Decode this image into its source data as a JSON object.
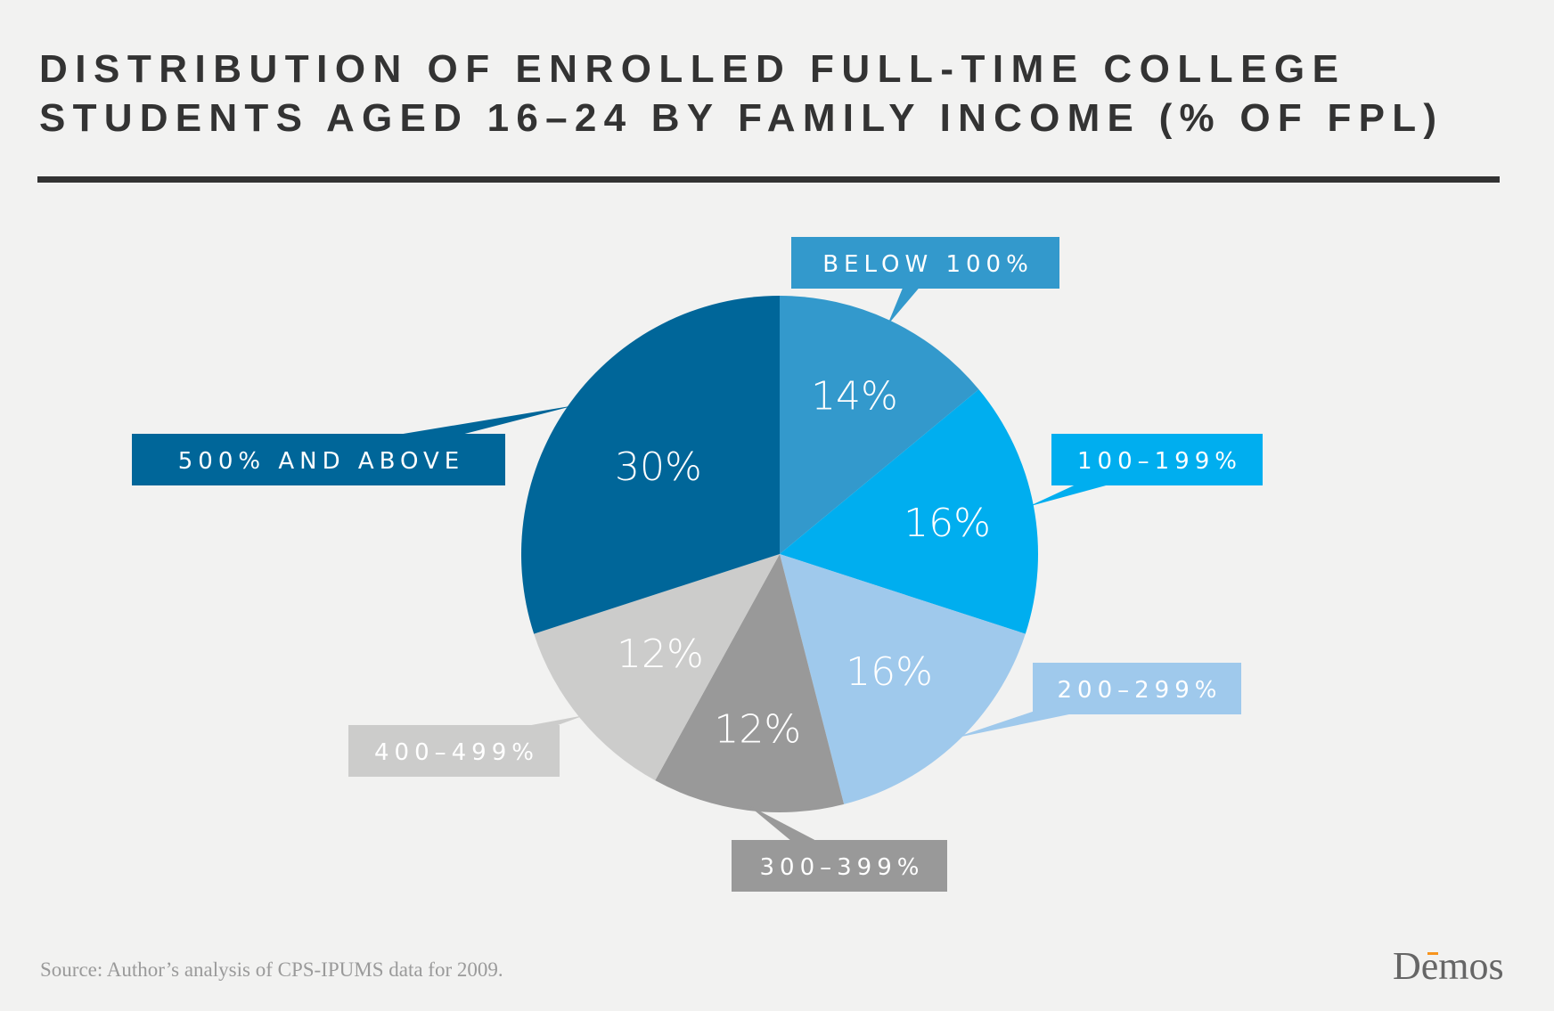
{
  "chart_data": {
    "type": "pie",
    "title_lines": [
      "DISTRIBUTION OF ENROLLED FULL-TIME COLLEGE",
      "STUDENTS AGED 16–24 BY FAMILY INCOME (% OF FPL)"
    ],
    "start": "top",
    "direction": "clockwise",
    "slices": [
      {
        "category": "BELOW 100%",
        "value": 14,
        "label": "14%",
        "color": "#3399cc"
      },
      {
        "category": "100–199%",
        "value": 16,
        "label": "16%",
        "color": "#00aeef"
      },
      {
        "category": "200–299%",
        "value": 16,
        "label": "16%",
        "color": "#9fc9ec"
      },
      {
        "category": "300–399%",
        "value": 12,
        "label": "12%",
        "color": "#999999"
      },
      {
        "category": "400–499%",
        "value": 12,
        "label": "12%",
        "color": "#cccccb"
      },
      {
        "category": "500% AND ABOVE",
        "value": 30,
        "label": "30%",
        "color": "#006699"
      }
    ],
    "source": "Source: Author’s analysis of CPS-IPUMS data for 2009.",
    "logo_text": "Demos",
    "colors": {
      "background": "#f2f2f1",
      "title": "#333333",
      "logo_accent": "#f7941d"
    }
  }
}
